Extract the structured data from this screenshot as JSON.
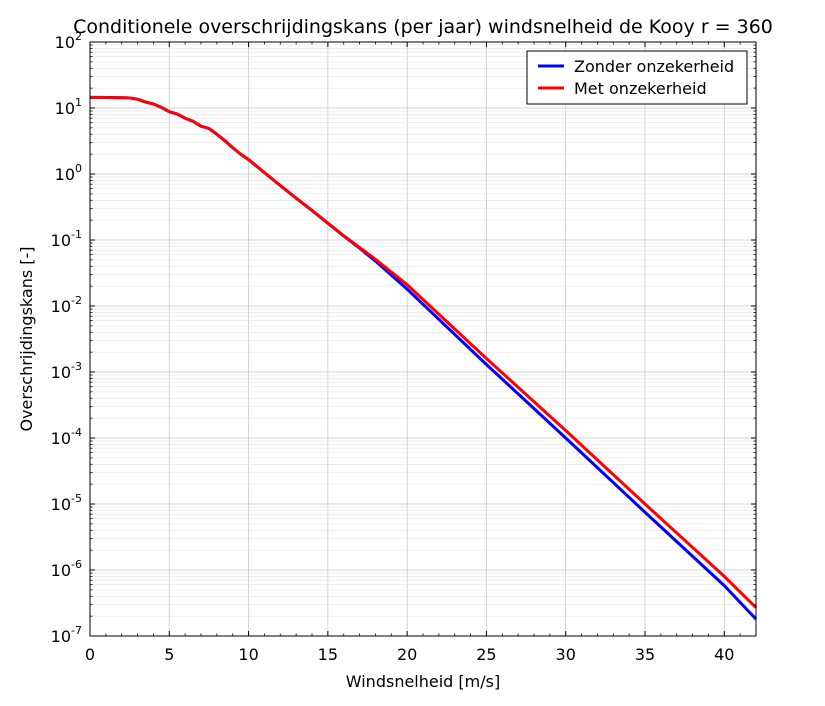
{
  "chart_data": {
    "type": "line",
    "title": "Conditionele overschrijdingskans (per jaar) windsnelheid de Kooy r = 360",
    "xlabel": "Windsnelheid [m/s]",
    "ylabel": "Overschrijdingskans [-]",
    "xlim": [
      0,
      42
    ],
    "ylim": [
      1e-07,
      100
    ],
    "yscale": "log",
    "grid": true,
    "legend_position": "top-right",
    "x_ticks": [
      "0",
      "5",
      "10",
      "15",
      "20",
      "25",
      "30",
      "35",
      "40"
    ],
    "y_ticks": [
      {
        "base": "10",
        "exp": "-7"
      },
      {
        "base": "10",
        "exp": "-6"
      },
      {
        "base": "10",
        "exp": "-5"
      },
      {
        "base": "10",
        "exp": "-4"
      },
      {
        "base": "10",
        "exp": "-3"
      },
      {
        "base": "10",
        "exp": "-2"
      },
      {
        "base": "10",
        "exp": "-1"
      },
      {
        "base": "10",
        "exp": "0"
      },
      {
        "base": "10",
        "exp": "1"
      },
      {
        "base": "10",
        "exp": "2"
      }
    ],
    "series": [
      {
        "name": "Zonder onzekerheid",
        "color": "#0000ff",
        "x": [
          0,
          1,
          2,
          2.5,
          3,
          3.5,
          4,
          4.5,
          5,
          5.5,
          6,
          6.5,
          7,
          7.5,
          8,
          8.5,
          9,
          9.5,
          10,
          11,
          12,
          13,
          14,
          15,
          16,
          17,
          18,
          20,
          25,
          30,
          35,
          40,
          42
        ],
        "y": [
          14.5,
          14.4,
          14.3,
          14.2,
          13.6,
          12.3,
          11.5,
          10.2,
          8.8,
          8.1,
          7.0,
          6.3,
          5.3,
          4.9,
          4.0,
          3.2,
          2.5,
          2.0,
          1.65,
          1.05,
          0.67,
          0.43,
          0.28,
          0.18,
          0.115,
          0.075,
          0.048,
          0.018,
          0.0013,
          0.0001,
          7.5e-06,
          5.8e-07,
          1.8e-07
        ]
      },
      {
        "name": "Met onzekerheid",
        "color": "#ff0000",
        "x": [
          0,
          1,
          2,
          2.5,
          3,
          3.5,
          4,
          4.5,
          5,
          5.5,
          6,
          6.5,
          7,
          7.5,
          8,
          8.5,
          9,
          9.5,
          10,
          11,
          12,
          13,
          14,
          15,
          16,
          17,
          18,
          20,
          25,
          30,
          35,
          40,
          42
        ],
        "y": [
          14.5,
          14.4,
          14.3,
          14.2,
          13.6,
          12.3,
          11.5,
          10.2,
          8.8,
          8.1,
          7.0,
          6.3,
          5.3,
          4.9,
          4.0,
          3.2,
          2.5,
          2.0,
          1.65,
          1.05,
          0.67,
          0.43,
          0.28,
          0.18,
          0.116,
          0.077,
          0.051,
          0.021,
          0.0016,
          0.00013,
          1e-05,
          8e-07,
          2.7e-07
        ]
      }
    ]
  }
}
